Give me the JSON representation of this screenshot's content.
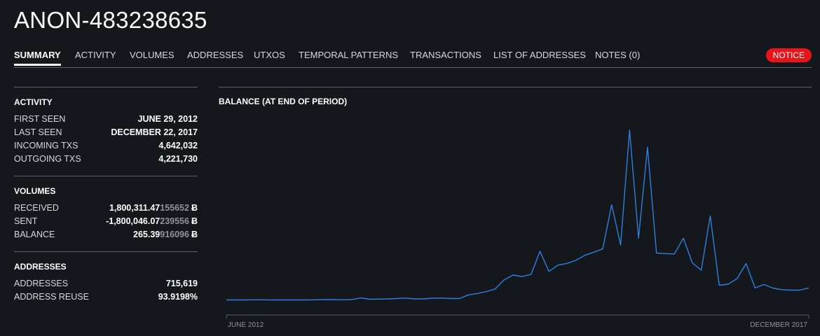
{
  "header": {
    "title": "ANON-483238635"
  },
  "tabs": [
    {
      "label": "SUMMARY",
      "active": true
    },
    {
      "label": "ACTIVITY"
    },
    {
      "label": "VOLUMES"
    },
    {
      "label": "ADDRESSES"
    },
    {
      "label": "UTXOS"
    },
    {
      "label": "TEMPORAL PATTERNS"
    },
    {
      "label": "TRANSACTIONS"
    },
    {
      "label": "LIST OF ADDRESSES"
    },
    {
      "label": "NOTES (0)"
    }
  ],
  "notice": {
    "label": "NOTICE",
    "color": "#e8141c"
  },
  "activity": {
    "title": "ACTIVITY",
    "rows": [
      {
        "label": "FIRST SEEN",
        "value": "JUNE 29, 2012"
      },
      {
        "label": "LAST SEEN",
        "value": "DECEMBER 22, 2017"
      },
      {
        "label": "INCOMING TXS",
        "value": "4,642,032"
      },
      {
        "label": "OUTGOING TXS",
        "value": "4,221,730"
      }
    ]
  },
  "volumes": {
    "title": "VOLUMES",
    "currency_symbol": "Ƀ",
    "rows": [
      {
        "label": "RECEIVED",
        "value_main": "1,800,311.47",
        "value_dim": "155652"
      },
      {
        "label": "SENT",
        "value_main": "-1,800,046.07",
        "value_dim": "239556"
      },
      {
        "label": "BALANCE",
        "value_main": "265.39",
        "value_dim": "916096"
      }
    ]
  },
  "addresses": {
    "title": "ADDRESSES",
    "rows": [
      {
        "label": "ADDRESSES",
        "value": "715,619"
      },
      {
        "label": "ADDRESS REUSE",
        "value": "93.9198%"
      }
    ]
  },
  "chart_data": {
    "type": "line",
    "title": "BALANCE (AT END OF PERIOD)",
    "xlabel": "",
    "ylabel": "",
    "x_tick_labels": [
      "JUNE 2012",
      "DECEMBER 2017"
    ],
    "line_color": "#2f7fe0",
    "grid": false,
    "ylim": [
      0,
      100
    ],
    "values": [
      3,
      3,
      3,
      3.1,
      3.1,
      3,
      3,
      3,
      3,
      3,
      3.1,
      3.2,
      3.2,
      3.1,
      3.2,
      4.2,
      3.4,
      3.5,
      3.6,
      3.8,
      4.1,
      3.6,
      3.6,
      4,
      4.1,
      3.8,
      3.8,
      5.9,
      6.7,
      7.8,
      9.3,
      14.5,
      17.2,
      16.4,
      17.6,
      30.8,
      19.3,
      22.9,
      23.9,
      25.6,
      28.5,
      30.3,
      32.2,
      57.4,
      34.4,
      100,
      38.3,
      90.3,
      29.8,
      29.5,
      29.3,
      38.3,
      24.2,
      20,
      51,
      11.4,
      12,
      15.2,
      23.8,
      9.9,
      11.8,
      9.8,
      8.9,
      8.6,
      8.6,
      9.9
    ]
  }
}
